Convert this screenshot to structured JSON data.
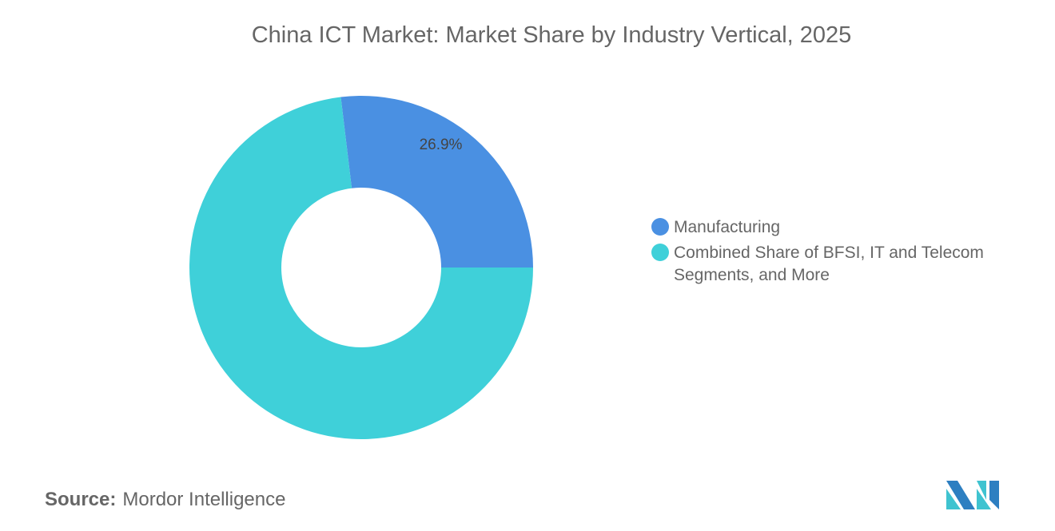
{
  "title": "China ICT Market: Market Share by Industry Vertical, 2025",
  "chart_data": {
    "type": "pie",
    "variant": "donut",
    "title": "China ICT Market: Market Share by Industry Vertical, 2025",
    "slices": [
      {
        "name": "Manufacturing",
        "value": 26.9,
        "label": "26.9%",
        "color": "#4a90e2"
      },
      {
        "name": "Combined Share of BFSI, IT and Telecom Segments, and More",
        "value": 73.1,
        "label": "",
        "color": "#3fd0d9"
      }
    ],
    "legend": "right"
  },
  "source": {
    "label": "Source:",
    "value": "Mordor Intelligence"
  }
}
